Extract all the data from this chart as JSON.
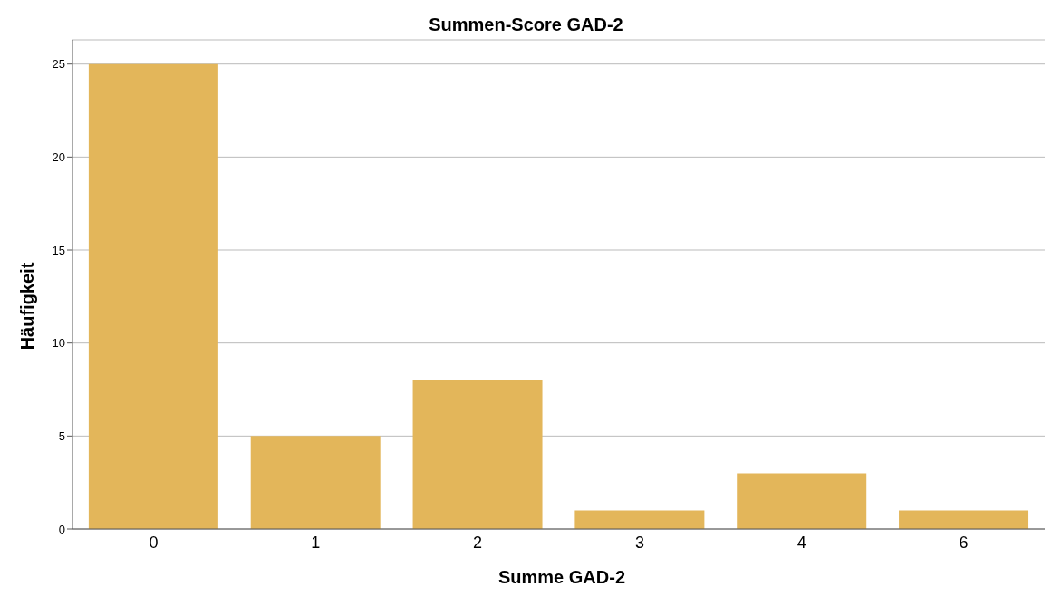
{
  "chart_data": {
    "type": "bar",
    "title": "Summen-Score GAD-2",
    "xlabel": "Summe GAD-2",
    "ylabel": "Häufigkeit",
    "categories": [
      "0",
      "1",
      "2",
      "3",
      "4",
      "6"
    ],
    "values": [
      25,
      5,
      8,
      1,
      3,
      1
    ],
    "color": "#e3b65a",
    "ylim": [
      0,
      26.3
    ],
    "yticks": [
      0,
      5,
      10,
      15,
      20,
      25
    ],
    "grid": "y"
  }
}
